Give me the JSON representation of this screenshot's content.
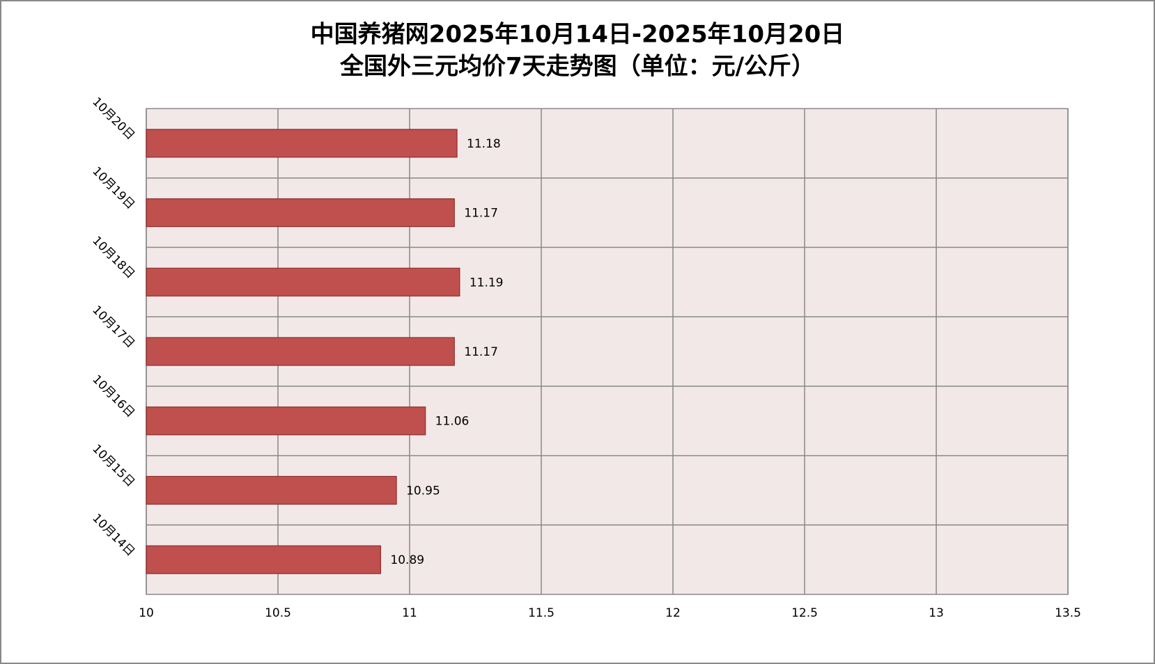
{
  "chart_data": {
    "type": "bar",
    "orientation": "horizontal",
    "title": "中国养猪网2025年10月14日-2025年10月20日",
    "subtitle": "全国外三元均价7天走势图（单位：元/公斤）",
    "categories": [
      "10月20日",
      "10月19日",
      "10月18日",
      "10月17日",
      "10月16日",
      "10月15日",
      "10月14日"
    ],
    "values": [
      11.18,
      11.17,
      11.19,
      11.17,
      11.06,
      10.95,
      10.89
    ],
    "color": "#c0504d",
    "xlim": [
      10,
      13.5
    ],
    "xticks": [
      10,
      10.5,
      11,
      11.5,
      12,
      12.5,
      13,
      13.5
    ],
    "grid": true
  }
}
